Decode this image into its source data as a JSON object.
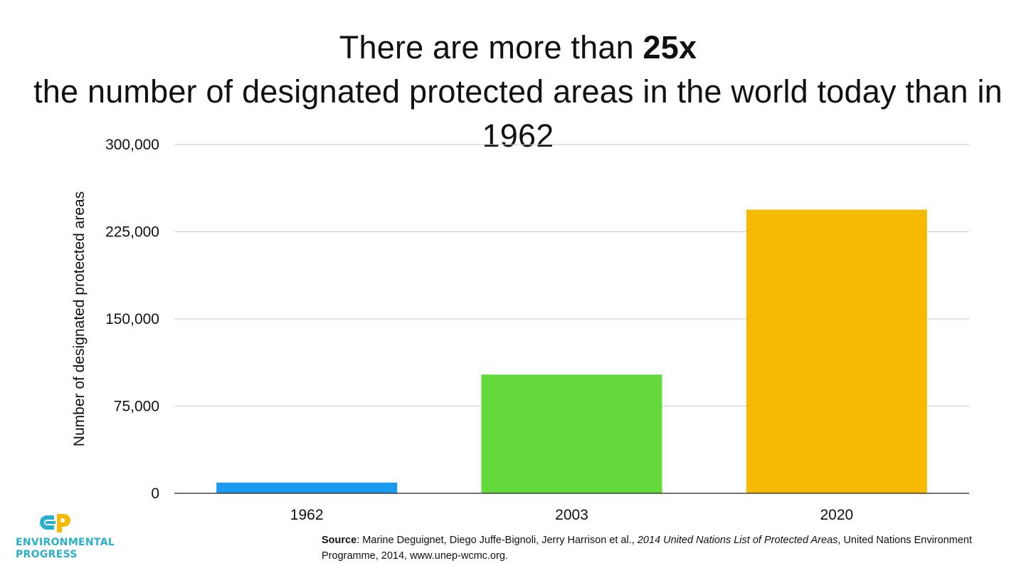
{
  "title": {
    "part1": "There are more than ",
    "emphasis": "25x",
    "part2": " the number of designated protected areas in the world today than in 1962"
  },
  "chart_data": {
    "type": "bar",
    "categories": [
      "1962",
      "2003",
      "2020"
    ],
    "values": [
      9214,
      102102,
      244000
    ],
    "colors": [
      "#1a9bf0",
      "#63d93b",
      "#f6ba05"
    ],
    "ylabel": "Number of designated protected areas",
    "xlabel": "",
    "ylim": [
      0,
      300000
    ],
    "yticks": [
      0,
      75000,
      150000,
      225000,
      300000
    ],
    "ytick_labels": [
      "0",
      "75,000",
      "150,000",
      "225,000",
      "300,000"
    ],
    "grid": true,
    "legend": "none"
  },
  "source": {
    "label": "Source",
    "text1": ": Marine Deguignet, Diego Juffe-Bignoli, Jerry Harrison et al., ",
    "italic": "2014 United Nations List of Protected Areas",
    "text2": ", United Nations Environment Programme, 2014, www.unep-wcmc.org."
  },
  "logo": {
    "line1": "ENVIRONMENTAL",
    "line2": "PROGRESS"
  },
  "colors": {
    "grid": "#cccccc",
    "axis": "#222222",
    "logo_blue": "#2ab0cc",
    "logo_yellow": "#f6ba05"
  }
}
